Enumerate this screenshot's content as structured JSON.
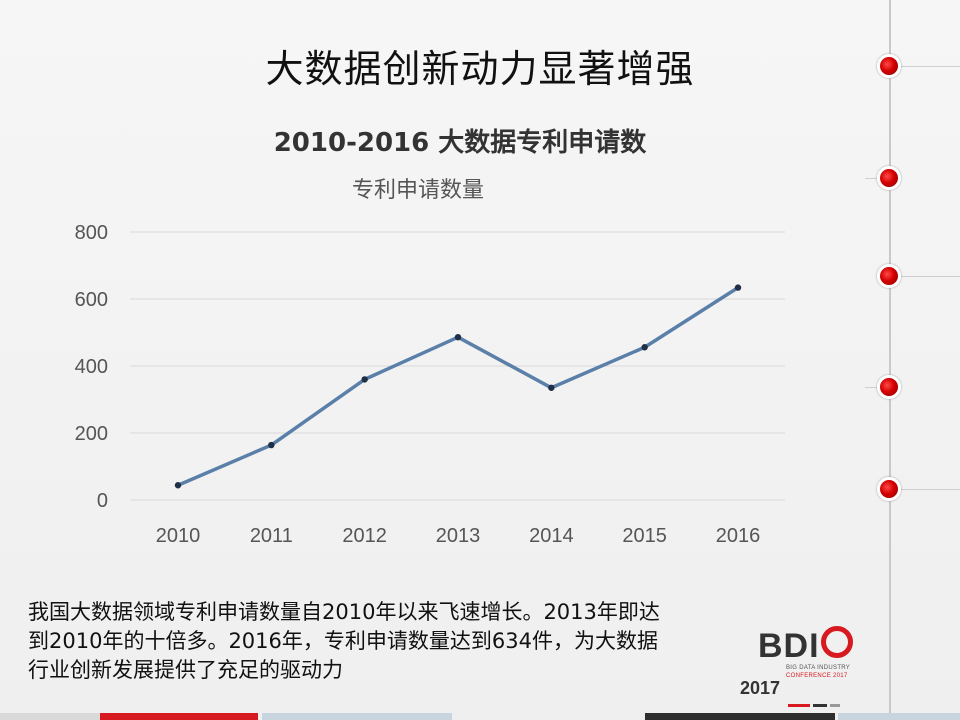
{
  "slide": {
    "title": "大数据创新动力显著增强",
    "caption_lines": [
      "我国大数据领域专利申请数量自2010年以来飞速增长。2013年即达",
      "到2010年的十倍多。2016年，专利申请数量达到634件，为大数据",
      "行业创新发展提供了充足的驱动力"
    ]
  },
  "logo": {
    "letters": "BDI",
    "sub_line1": "BIG DATA INDUSTRY",
    "sub_line2": "CONFERENCE 2017",
    "year": "2017"
  },
  "colors": {
    "line": "#5a7fa8",
    "accent_red": "#d71920",
    "grid": "#d9d9d9"
  },
  "chart_data": {
    "type": "line",
    "title": "2010-2016 大数据专利申请数",
    "categories": [
      "2010",
      "2011",
      "2012",
      "2013",
      "2014",
      "2015",
      "2016"
    ],
    "series": [
      {
        "name": "专利申请数量",
        "values": [
          44,
          164,
          360,
          486,
          335,
          456,
          634
        ]
      }
    ],
    "ylim": [
      0,
      800
    ],
    "yticks": [
      0,
      200,
      400,
      600,
      800
    ],
    "grid": true,
    "legend": "top-left"
  }
}
